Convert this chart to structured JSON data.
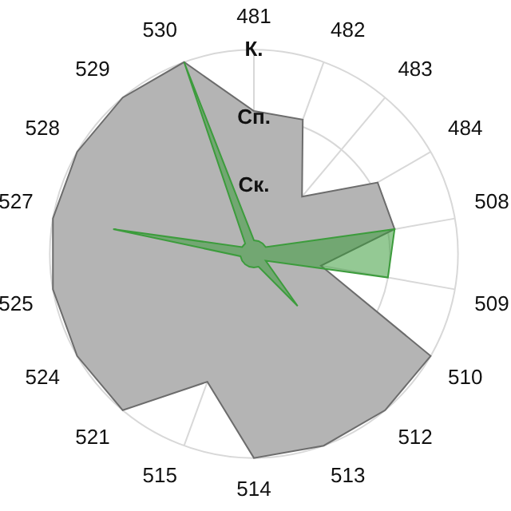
{
  "chart_data": {
    "type": "radar",
    "categories": [
      "481",
      "482",
      "483",
      "484",
      "508",
      "509",
      "510",
      "512",
      "513",
      "514",
      "515",
      "521",
      "524",
      "525",
      "527",
      "528",
      "529",
      "530"
    ],
    "series": [
      {
        "color": "#b4b4b4",
        "values": [
          2.1,
          2.1,
          1.1,
          2.1,
          2.1,
          1.0,
          3,
          3,
          3,
          3,
          2.0,
          3,
          3,
          3,
          3,
          3,
          3,
          3
        ]
      },
      {
        "color": "#3c9c3c",
        "values": [
          0.2,
          0.2,
          0.2,
          0.2,
          2.1,
          2.0,
          0.2,
          1.0,
          0.2,
          0.2,
          0.2,
          0.2,
          0.2,
          0.2,
          2.1,
          0.2,
          0.2,
          3
        ]
      }
    ],
    "ylim": [
      0,
      3
    ],
    "yticks": [
      {
        "value": 1,
        "label": "Ск."
      },
      {
        "value": 2,
        "label": "Сп."
      },
      {
        "value": 3,
        "label": "К."
      }
    ],
    "grid": true,
    "legend": false,
    "marker": "none"
  }
}
